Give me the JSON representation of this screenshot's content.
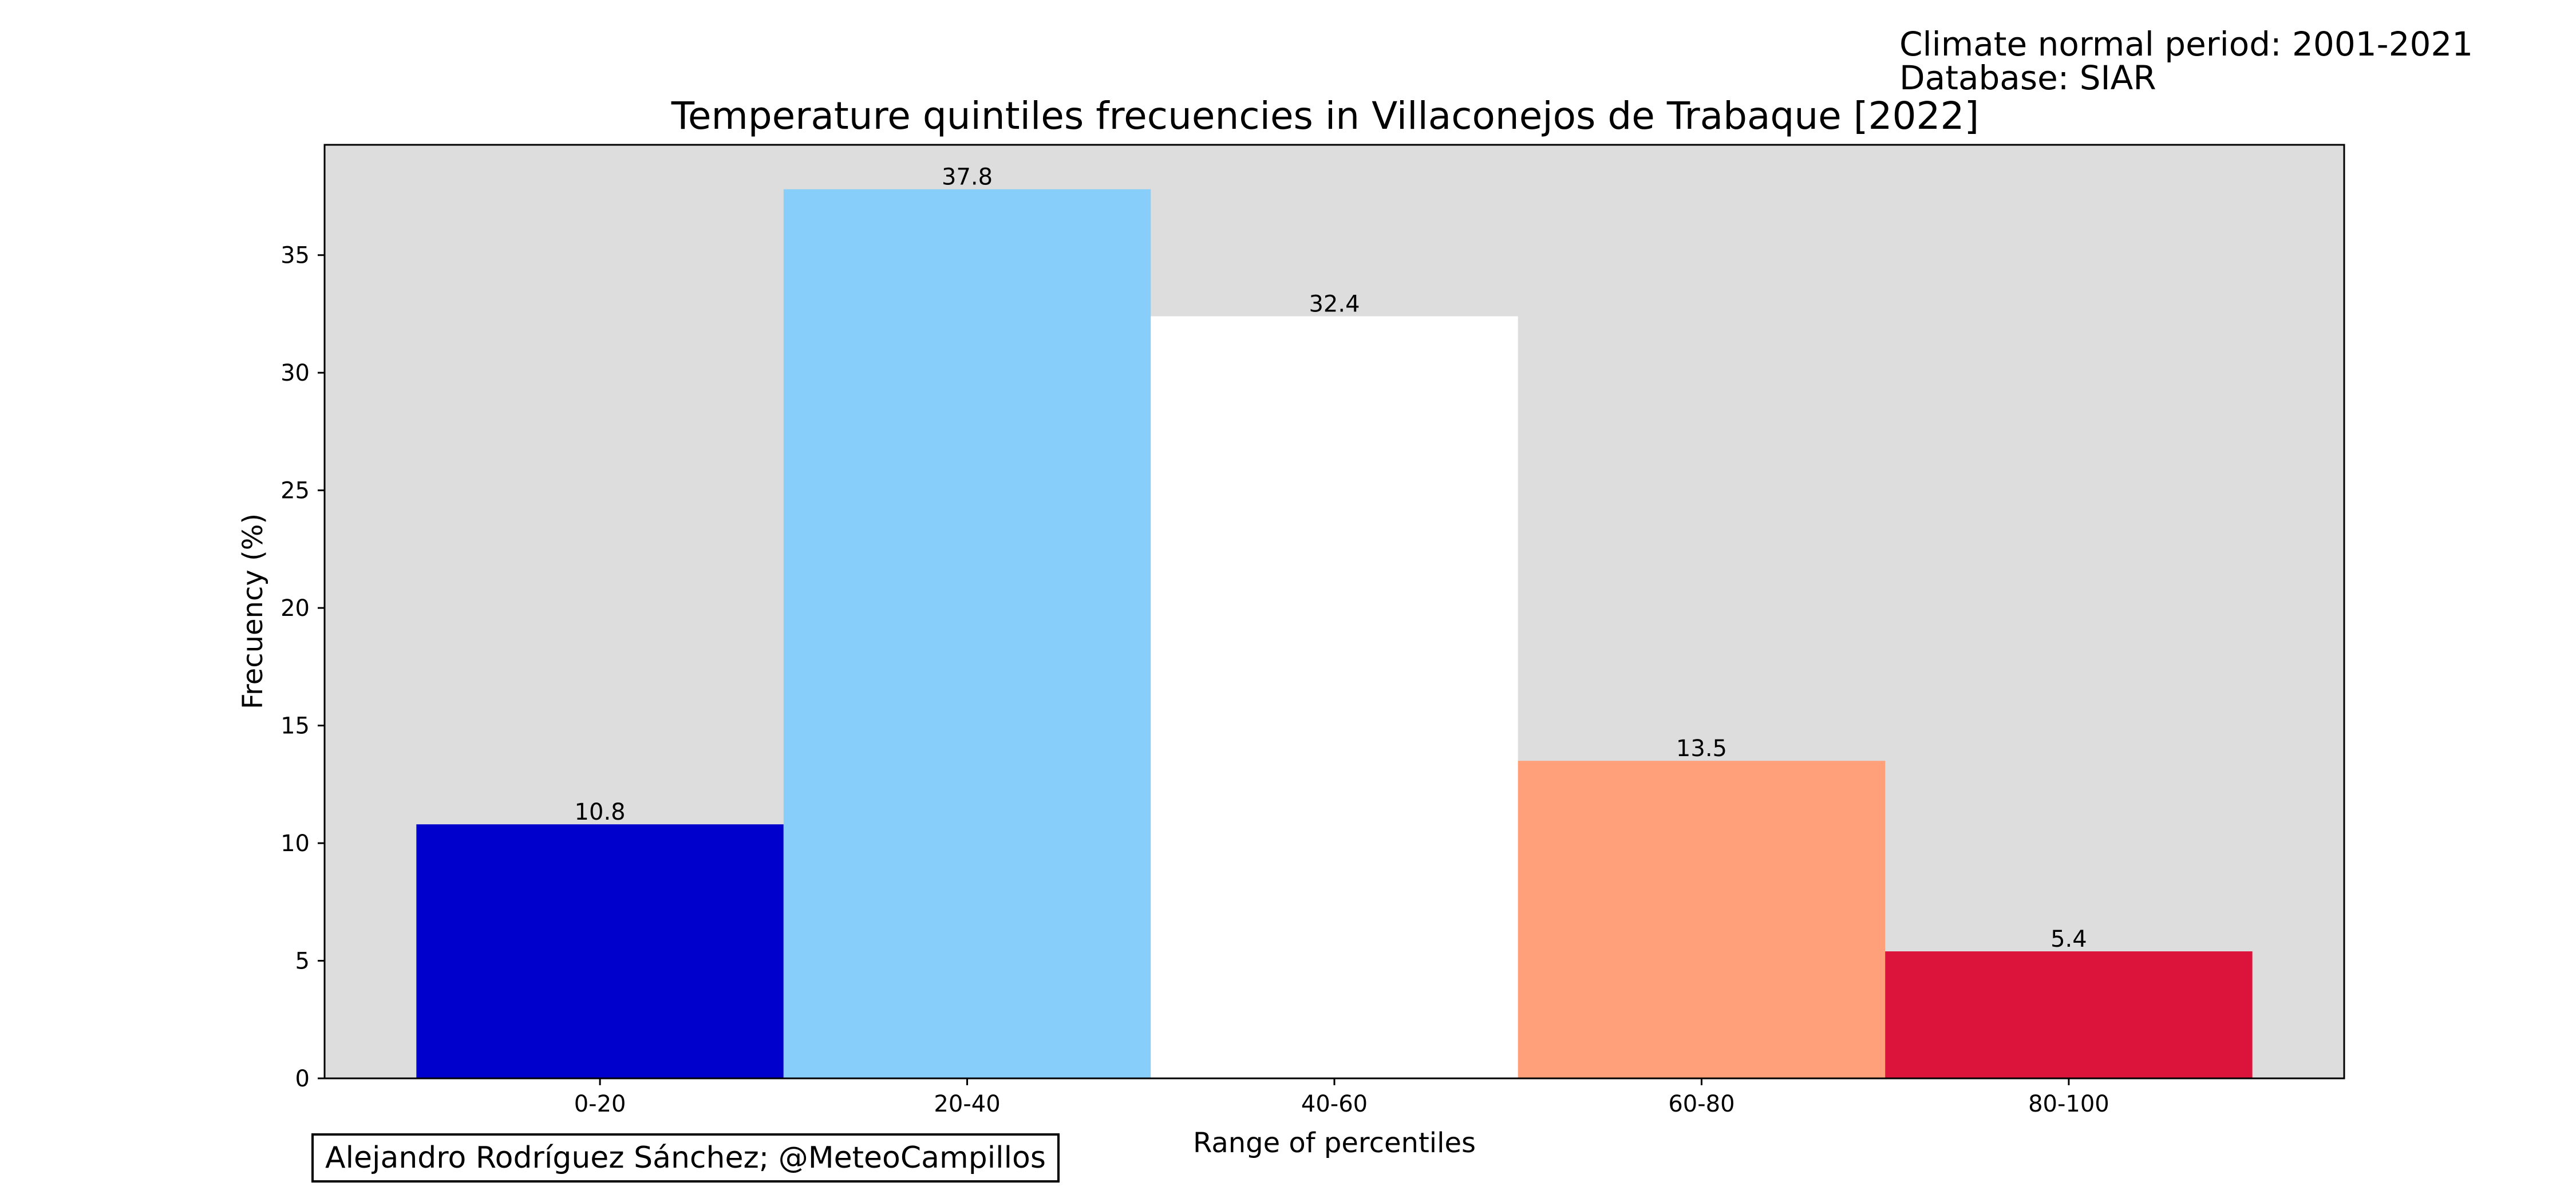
{
  "info": {
    "line1": "Climate normal period: 2001-2021",
    "line2": "Database: SIAR"
  },
  "credit": "Alejandro Rodríguez Sánchez; @MeteoCampillos",
  "chart_data": {
    "type": "bar",
    "title": "Temperature quintiles frecuencies in Villaconejos de Trabaque [2022]",
    "xlabel": "Range of percentiles",
    "ylabel": "Frecuency (%)",
    "categories": [
      "0-20",
      "20-40",
      "40-60",
      "60-80",
      "80-100"
    ],
    "values": [
      10.8,
      37.8,
      32.4,
      13.5,
      5.4
    ],
    "value_labels": [
      "10.8",
      "37.8",
      "32.4",
      "13.5",
      "5.4"
    ],
    "colors": [
      "#0000cd",
      "#87cefa",
      "#ffffff",
      "#ffa07a",
      "#dc143c"
    ],
    "plot_background": "#dddddd",
    "yticks": [
      0,
      5,
      10,
      15,
      20,
      25,
      30,
      35
    ],
    "ylim": [
      0,
      39.69
    ],
    "grid": false,
    "legend": "none"
  }
}
